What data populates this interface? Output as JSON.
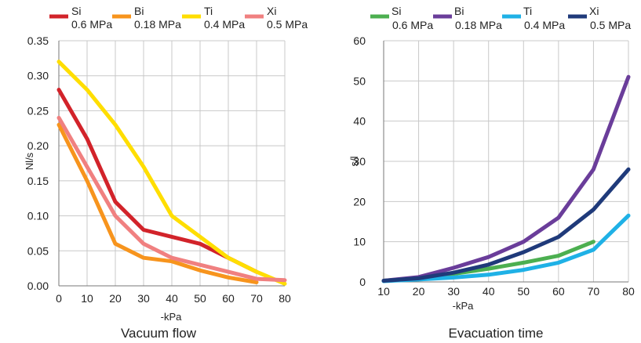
{
  "chart_data": [
    {
      "type": "line",
      "title": "Vacuum flow",
      "xlabel": "-kPa",
      "ylabel": "Nl/s",
      "xlim": [
        0,
        80
      ],
      "ylim": [
        0,
        0.35
      ],
      "x_ticks": [
        "0",
        "10",
        "20",
        "30",
        "40",
        "50",
        "60",
        "70",
        "80"
      ],
      "y_ticks": [
        "0.00",
        "0.05",
        "0.10",
        "0.15",
        "0.20",
        "0.25",
        "0.30",
        "0.35"
      ],
      "grid": true,
      "legend_position": "top",
      "series": [
        {
          "name": "Si",
          "pressure": "0.6 MPa",
          "color": "#d2232a",
          "x": [
            0,
            10,
            20,
            30,
            40,
            50,
            60,
            70
          ],
          "values": [
            0.28,
            0.21,
            0.12,
            0.08,
            0.07,
            0.06,
            0.04,
            0.02
          ]
        },
        {
          "name": "Bi",
          "pressure": "0.18 MPa",
          "color": "#f7941d",
          "x": [
            0,
            10,
            20,
            30,
            40,
            50,
            60,
            70
          ],
          "values": [
            0.23,
            0.15,
            0.06,
            0.04,
            0.035,
            0.022,
            0.012,
            0.005
          ]
        },
        {
          "name": "Ti",
          "pressure": "0.4 MPa",
          "color": "#ffde00",
          "x": [
            0,
            10,
            20,
            30,
            40,
            50,
            60,
            70,
            80
          ],
          "values": [
            0.32,
            0.28,
            0.23,
            0.17,
            0.1,
            0.07,
            0.04,
            0.02,
            0.003
          ]
        },
        {
          "name": "Xi",
          "pressure": "0.5 MPa",
          "color": "#f08080",
          "x": [
            0,
            10,
            20,
            30,
            40,
            50,
            60,
            70,
            80
          ],
          "values": [
            0.24,
            0.17,
            0.1,
            0.06,
            0.04,
            0.03,
            0.02,
            0.01,
            0.008
          ]
        }
      ]
    },
    {
      "type": "line",
      "title": "Evacuation time",
      "xlabel": "-kPa",
      "ylabel": "s/l",
      "xlim": [
        10,
        80
      ],
      "ylim": [
        0,
        60
      ],
      "x_ticks": [
        "10",
        "20",
        "30",
        "40",
        "50",
        "60",
        "70",
        "80"
      ],
      "y_ticks": [
        "0",
        "10",
        "20",
        "30",
        "40",
        "50",
        "60"
      ],
      "grid": true,
      "legend_position": "top",
      "series": [
        {
          "name": "Si",
          "pressure": "0.6 MPa",
          "color": "#4caf50",
          "x": [
            10,
            20,
            30,
            40,
            50,
            60,
            70
          ],
          "values": [
            0.3,
            1.0,
            2.0,
            3.3,
            4.8,
            6.5,
            10.0
          ]
        },
        {
          "name": "Bi",
          "pressure": "0.18 MPa",
          "color": "#6a3d9a",
          "x": [
            10,
            20,
            30,
            40,
            50,
            60,
            70,
            80
          ],
          "values": [
            0.3,
            1.2,
            3.5,
            6.2,
            10.0,
            16.0,
            28.0,
            51.0
          ]
        },
        {
          "name": "Ti",
          "pressure": "0.4 MPa",
          "color": "#1fb1e6",
          "x": [
            10,
            20,
            30,
            40,
            50,
            60,
            70,
            80
          ],
          "values": [
            0.2,
            0.6,
            1.1,
            1.8,
            3.0,
            4.8,
            8.0,
            16.5
          ]
        },
        {
          "name": "Xi",
          "pressure": "0.5 MPa",
          "color": "#1f3a7a",
          "x": [
            10,
            20,
            30,
            40,
            50,
            60,
            70,
            80
          ],
          "values": [
            0.3,
            0.9,
            2.3,
            4.3,
            7.4,
            11.2,
            18.0,
            28.0
          ]
        }
      ]
    }
  ]
}
